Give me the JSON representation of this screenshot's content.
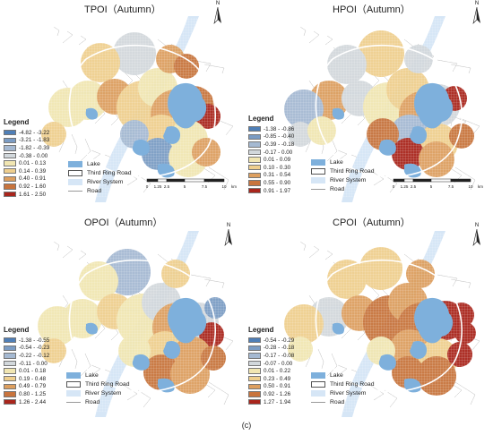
{
  "caption": "(c)",
  "colors": {
    "lake": "#7eb0dc",
    "river": "#d6e6f6",
    "ring_road": "#ffffff",
    "road": "#b9b9b9",
    "classes": [
      "#4f7fb7",
      "#7b9cc4",
      "#a5b9d2",
      "#d2d8dc",
      "#f1e6b2",
      "#efcf8e",
      "#dd9f5f",
      "#c8743d",
      "#a9251c"
    ]
  },
  "features": {
    "lake": "Lake",
    "ring": "Third Ring Road",
    "river": "River System",
    "road": "Road"
  },
  "legend_title": "Legend",
  "scale": {
    "ticks": [
      "0",
      "1.25",
      "2.5",
      "5",
      "7.5",
      "10"
    ],
    "unit": "km"
  },
  "north_label": "N",
  "panels": [
    {
      "id": "tpoi",
      "title": "TPOI（Autumn）",
      "classes": [
        "-4.82 - -3.22",
        "-3.21 - -1.83",
        "-1.82 - -0.39",
        "-0.38 - 0.00",
        "0.01 - 0.13",
        "0.14 - 0.39",
        "0.40 - 0.91",
        "0.92 - 1.60",
        "1.61 - 2.50"
      ]
    },
    {
      "id": "hpoi",
      "title": "HPOI（Autumn）",
      "classes": [
        "-1.38 - -0.86",
        "-0.85 - -0.40",
        "-0.39 - -0.18",
        "-0.17 - 0.00",
        "0.01 - 0.09",
        "0.10 - 0.30",
        "0.31 - 0.54",
        "0.55 - 0.90",
        "0.91 - 1.97"
      ]
    },
    {
      "id": "opoi",
      "title": "OPOI（Autumn）",
      "classes": [
        "-1.38 - -0.55",
        "-0.54 - -0.23",
        "-0.22 - -0.12",
        "-0.11 - 0.00",
        "0.01 - 0.18",
        "0.19 - 0.48",
        "0.49 - 0.79",
        "0.80 - 1.25",
        "1.26 - 2.44"
      ]
    },
    {
      "id": "cpoi",
      "title": "CPOI（Autumn）",
      "classes": [
        "-0.54 - -0.29",
        "-0.28 - -0.18",
        "-0.17 - -0.08",
        "-0.07 - 0.00",
        "0.01 - 0.22",
        "0.23 - 0.49",
        "0.50 - 0.91",
        "0.92 - 1.26",
        "1.27 - 1.94"
      ]
    }
  ]
}
